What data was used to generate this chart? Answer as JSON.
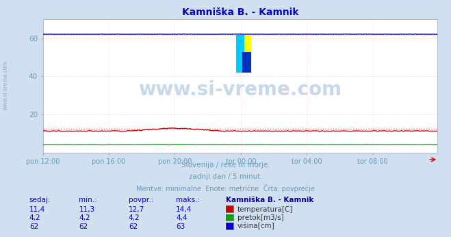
{
  "title": "Kamniška B. - Kamnik",
  "title_color": "#0000cc",
  "bg_color": "#d0e0f0",
  "plot_bg_color": "#ffffff",
  "grid_color": "#ffbbbb",
  "grid_color_v": "#ffcccc",
  "xticklabels": [
    "pon 12:00",
    "pon 16:00",
    "pon 20:00",
    "tor 00:00",
    "tor 04:00",
    "tor 08:00"
  ],
  "xtick_positions": [
    0,
    48,
    96,
    144,
    192,
    240
  ],
  "n_points": 288,
  "ylim": [
    0,
    70
  ],
  "yticks": [
    0,
    20,
    40,
    60
  ],
  "temp_avg": 12.7,
  "flow_avg": 4.2,
  "height_avg": 62.0,
  "temp_color": "#cc0000",
  "flow_color": "#00aa00",
  "height_color": "#0000cc",
  "avg_line_color_temp": "#ff6666",
  "avg_line_color_height": "#6666ff",
  "watermark": "www.si-vreme.com",
  "subtitle1": "Slovenija / reke in morje.",
  "subtitle2": "zadnji dan / 5 minut.",
  "subtitle3": "Meritve: minimalne  Enote: metrične  Črta: povprečje",
  "subtitle_color": "#6699bb",
  "table_header": [
    "sedaj:",
    "min.:",
    "povpr.:",
    "maks.:",
    "Kamniška B. - Kamnik"
  ],
  "table_rows": [
    [
      "11,4",
      "11,3",
      "12,7",
      "14,4",
      "temperatura[C]",
      "#cc0000"
    ],
    [
      "4,2",
      "4,2",
      "4,2",
      "4,4",
      "pretok[m3/s]",
      "#00aa00"
    ],
    [
      "62",
      "62",
      "62",
      "63",
      "višina[cm]",
      "#0000cc"
    ]
  ],
  "table_num_color": "#0000cc",
  "table_header_color": "#000099",
  "table_label_color": "#333333",
  "left_watermark": "www.si-vreme.com"
}
